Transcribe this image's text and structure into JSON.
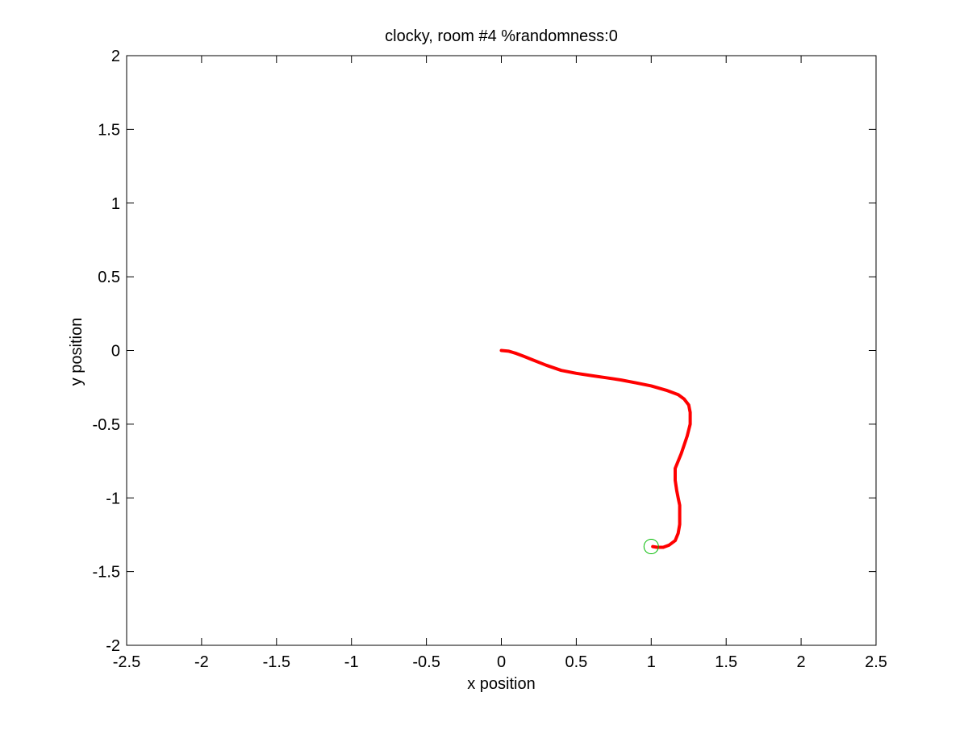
{
  "chart_data": {
    "type": "line",
    "title": "clocky, room #4 %randomness:0",
    "xlabel": "x position",
    "ylabel": "y position",
    "xlim": [
      -2.5,
      2.5
    ],
    "ylim": [
      -2,
      2
    ],
    "xticks": [
      -2.5,
      -2,
      -1.5,
      -1,
      -0.5,
      0,
      0.5,
      1,
      1.5,
      2,
      2.5
    ],
    "yticks": [
      -2,
      -1.5,
      -1,
      -0.5,
      0,
      0.5,
      1,
      1.5,
      2
    ],
    "xtick_labels": [
      "-2.5",
      "-2",
      "-1.5",
      "-1",
      "-0.5",
      "0",
      "0.5",
      "1",
      "1.5",
      "2",
      "2.5"
    ],
    "ytick_labels": [
      "-2",
      "-1.5",
      "-1",
      "-0.5",
      "0",
      "0.5",
      "1",
      "1.5",
      "2"
    ],
    "grid": false,
    "series": [
      {
        "color": "#ff0000",
        "x": [
          0.0,
          0.05,
          0.1,
          0.15,
          0.2,
          0.3,
          0.4,
          0.5,
          0.6,
          0.7,
          0.8,
          0.9,
          1.0,
          1.1,
          1.18,
          1.22,
          1.25,
          1.26,
          1.26,
          1.24,
          1.22,
          1.2,
          1.18,
          1.16,
          1.16,
          1.17,
          1.18,
          1.19,
          1.19,
          1.19,
          1.18,
          1.16,
          1.12,
          1.08,
          1.04,
          1.01
        ],
        "y": [
          0.0,
          -0.005,
          -0.02,
          -0.04,
          -0.06,
          -0.1,
          -0.135,
          -0.155,
          -0.17,
          -0.185,
          -0.2,
          -0.22,
          -0.24,
          -0.27,
          -0.3,
          -0.33,
          -0.37,
          -0.42,
          -0.5,
          -0.58,
          -0.64,
          -0.7,
          -0.75,
          -0.8,
          -0.88,
          -0.95,
          -1.0,
          -1.05,
          -1.12,
          -1.18,
          -1.24,
          -1.29,
          -1.32,
          -1.335,
          -1.335,
          -1.33
        ]
      }
    ],
    "marker": {
      "x": 1.0,
      "y": -1.33,
      "shape": "circle",
      "color": "#00bb00"
    }
  }
}
